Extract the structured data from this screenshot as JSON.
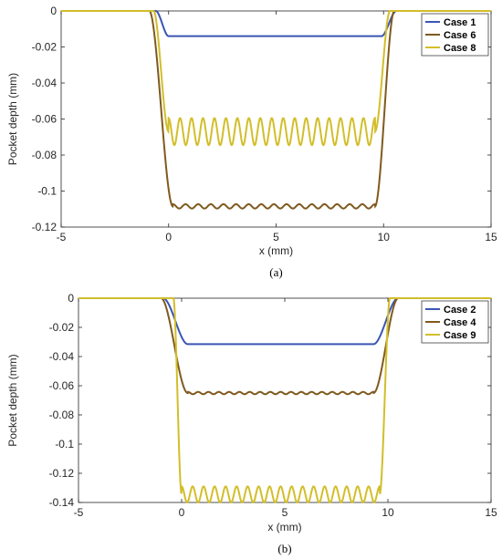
{
  "figure": {
    "panels": [
      {
        "label": "(a)",
        "chart_data": {
          "type": "line",
          "xlabel": "x (mm)",
          "ylabel": "Pocket depth (mm)",
          "xlim": [
            -5,
            15
          ],
          "ylim": [
            -0.12,
            0
          ],
          "xticks": [
            -5,
            0,
            5,
            10,
            15
          ],
          "xtick_labels": [
            "-5",
            "0",
            "5",
            "10",
            "15"
          ],
          "yticks": [
            0,
            -0.02,
            -0.04,
            -0.06,
            -0.08,
            -0.1,
            -0.12
          ],
          "ytick_labels": [
            "0",
            "-0.02",
            "-0.04",
            "-0.06",
            "-0.08",
            "-0.1",
            "-0.12"
          ],
          "grid": false,
          "legend_position": "top-right",
          "series": [
            {
              "name": "Case 1",
              "color": "#3a55b5",
              "depth": -0.014,
              "ripple_amplitude": 0.0,
              "ripple_count": 0,
              "wall_start": [
                -0.6,
                0.0
              ],
              "wall_end": [
                9.9,
                10.6
              ]
            },
            {
              "name": "Case 6",
              "color": "#7f5a1e",
              "depth": -0.1085,
              "ripple_amplitude": 0.0012,
              "ripple_count": 16,
              "wall_start": [
                -0.9,
                0.2
              ],
              "wall_end": [
                9.6,
                10.5
              ]
            },
            {
              "name": "Case 8",
              "color": "#d2be2a",
              "depth": -0.067,
              "ripple_amplitude": 0.0075,
              "ripple_count": 18,
              "wall_start": [
                -0.7,
                0.0
              ],
              "wall_end": [
                9.6,
                10.3
              ]
            }
          ]
        }
      },
      {
        "label": "(b)",
        "chart_data": {
          "type": "line",
          "xlabel": "x (mm)",
          "ylabel": "Pocket depth (mm)",
          "xlim": [
            -5,
            15
          ],
          "ylim": [
            -0.14,
            0
          ],
          "xticks": [
            -5,
            0,
            5,
            10,
            15
          ],
          "xtick_labels": [
            "-5",
            "0",
            "5",
            "10",
            "15"
          ],
          "yticks": [
            0,
            -0.02,
            -0.04,
            -0.06,
            -0.08,
            -0.1,
            -0.12,
            -0.14
          ],
          "ytick_labels": [
            "0",
            "-0.02",
            "-0.04",
            "-0.06",
            "-0.08",
            "-0.1",
            "-0.12",
            "-0.14"
          ],
          "grid": false,
          "legend_position": "top-right",
          "series": [
            {
              "name": "Case 2",
              "color": "#3a55b5",
              "depth": -0.0315,
              "ripple_amplitude": 0.0,
              "ripple_count": 0,
              "wall_start": [
                -0.9,
                0.3
              ],
              "wall_end": [
                9.3,
                10.5
              ]
            },
            {
              "name": "Case 4",
              "color": "#7f5a1e",
              "depth": -0.065,
              "ripple_amplitude": 0.0008,
              "ripple_count": 18,
              "wall_start": [
                -1.0,
                0.3
              ],
              "wall_end": [
                9.3,
                10.5
              ]
            },
            {
              "name": "Case 9",
              "color": "#d2be2a",
              "depth": -0.1345,
              "ripple_amplitude": 0.0055,
              "ripple_count": 18,
              "wall_start": [
                -0.4,
                0.0
              ],
              "wall_end": [
                9.6,
                10.1
              ]
            }
          ]
        }
      }
    ]
  }
}
